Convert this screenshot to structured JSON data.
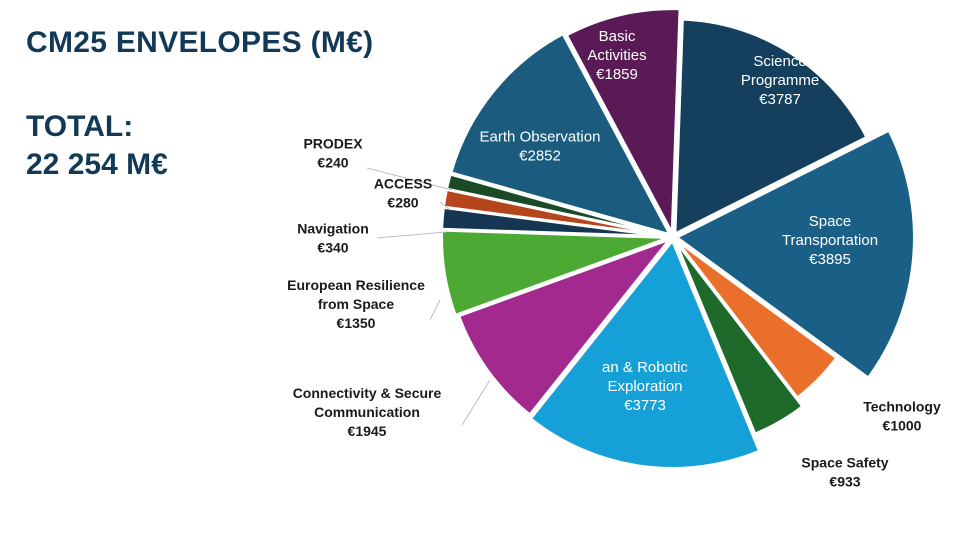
{
  "title": "CM25 ENVELOPES (M€)",
  "total": {
    "label": "TOTAL:",
    "value": "22 254 M€"
  },
  "chart_data": {
    "type": "pie",
    "title": "CM25 ENVELOPES (M€)",
    "total": 22254,
    "unit": "M€",
    "slices": [
      {
        "name": "Science Programme",
        "lines": [
          "Science",
          "Programme"
        ],
        "value_label": "€3787",
        "value": 3787,
        "color": "#14405e",
        "placement": "inside"
      },
      {
        "name": "Space Transportation",
        "lines": [
          "Space",
          "Transportation"
        ],
        "value_label": "€3895",
        "value": 3895,
        "color": "#1a5f86",
        "placement": "inside"
      },
      {
        "name": "Technology",
        "lines": [
          "Technology"
        ],
        "value_label": "€1000",
        "value": 1000,
        "color": "#e96f2b",
        "placement": "outside"
      },
      {
        "name": "Space Safety",
        "lines": [
          "Space Safety"
        ],
        "value_label": "€933",
        "value": 933,
        "color": "#1e6a2a",
        "placement": "outside"
      },
      {
        "name": "Human & Robotic Exploration",
        "lines": [
          "an & Robotic",
          "Exploration"
        ],
        "value_label": "€3773",
        "value": 3773,
        "color": "#16a0d8",
        "placement": "inside"
      },
      {
        "name": "Connectivity & Secure Communication",
        "lines": [
          "Connectivity & Secure",
          "Communication"
        ],
        "value_label": "€1945",
        "value": 1945,
        "color": "#a22a8f",
        "placement": "outside"
      },
      {
        "name": "European Resilience from Space",
        "lines": [
          "European Resilience",
          "from Space"
        ],
        "value_label": "€1350",
        "value": 1350,
        "color": "#4caa34",
        "placement": "outside"
      },
      {
        "name": "Navigation",
        "lines": [
          "Navigation"
        ],
        "value_label": "€340",
        "value": 340,
        "color": "#143650",
        "placement": "outside"
      },
      {
        "name": "ACCESS",
        "lines": [
          "ACCESS"
        ],
        "value_label": "€280",
        "value": 280,
        "color": "#b5461c",
        "placement": "outside"
      },
      {
        "name": "PRODEX",
        "lines": [
          "PRODEX"
        ],
        "value_label": "€240",
        "value": 240,
        "color": "#1b4a26",
        "placement": "outside"
      },
      {
        "name": "Earth Observation",
        "lines": [
          "Earth Observation"
        ],
        "value_label": "€2852",
        "value": 2852,
        "color": "#1a5b7e",
        "placement": "inside"
      },
      {
        "name": "Basic Activities",
        "lines": [
          "Basic",
          "Activities"
        ],
        "value_label": "€1859",
        "value": 1859,
        "color": "#5a1a55",
        "placement": "inside"
      }
    ],
    "legend": "none"
  }
}
